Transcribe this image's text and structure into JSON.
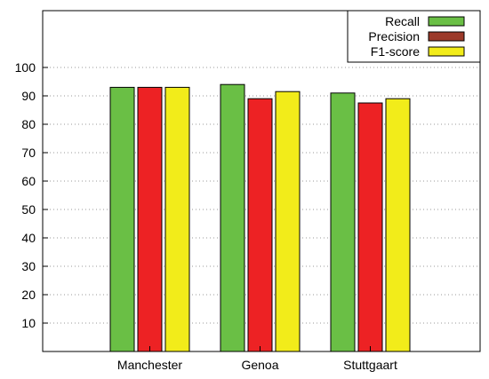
{
  "chart_data": {
    "type": "bar",
    "categories": [
      "Manchester",
      "Genoa",
      "Stuttgaart"
    ],
    "series": [
      {
        "name": "Recall",
        "values": [
          93,
          94,
          91
        ],
        "color": "#6abf45"
      },
      {
        "name": "Precision",
        "values": [
          93,
          89,
          87.5
        ],
        "color": "#ed2224"
      },
      {
        "name": "F1-score",
        "values": [
          93,
          91.5,
          89
        ],
        "color": "#f2ec1a"
      }
    ],
    "legend_swatch_colors": [
      "#6abf45",
      "#9c3a2a",
      "#f2ec1a"
    ],
    "y_ticks": [
      10,
      20,
      30,
      40,
      50,
      60,
      70,
      80,
      90,
      100
    ],
    "ylim": [
      0,
      120
    ],
    "grid": "horizontal dotted",
    "legend_position": "top-right"
  }
}
